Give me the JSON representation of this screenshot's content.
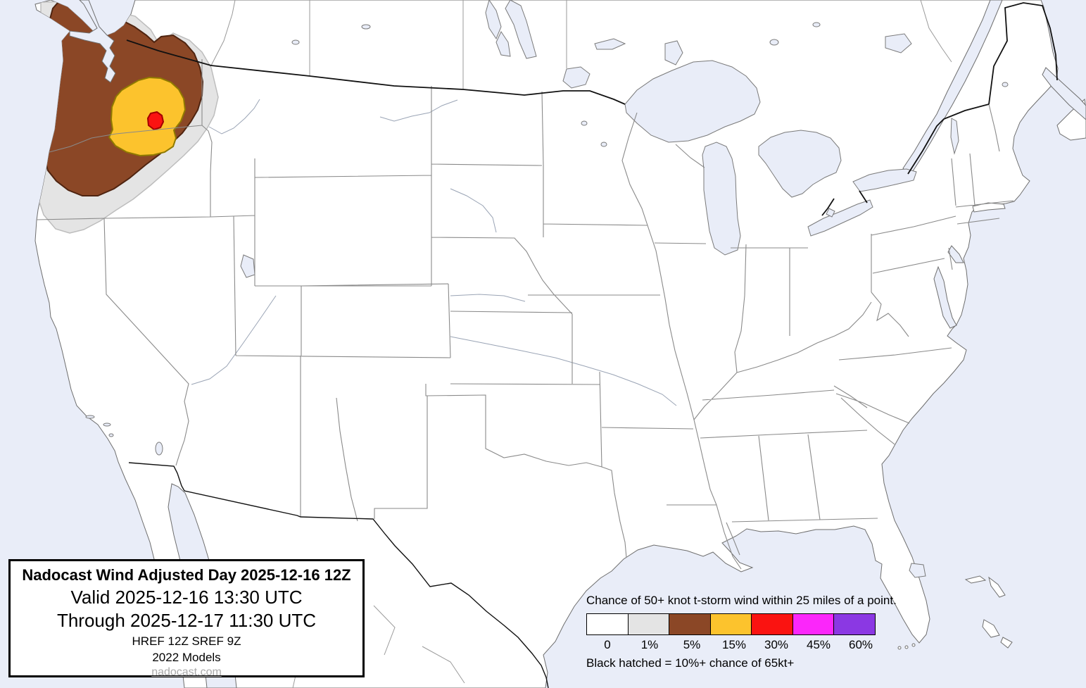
{
  "map": {
    "region": "Continental United States probability outlook map",
    "title_box": {
      "line1": "Nadocast Wind Adjusted Day 2025-12-16 12Z",
      "line2": "Valid 2025-12-16 13:30 UTC",
      "line3": "Through 2025-12-17 11:30 UTC",
      "line4": "HREF 12Z SREF 9Z",
      "line5": "2022 Models",
      "link": "nadocast.com"
    },
    "legend": {
      "title": "Chance of 50+ knot t-storm wind within 25 miles of a point.",
      "footnote": "Black hatched = 10%+ chance of 65kt+",
      "swatches": [
        {
          "label": "0",
          "color": "#ffffff"
        },
        {
          "label": "1%",
          "color": "#e4e4e4"
        },
        {
          "label": "5%",
          "color": "#8b4726"
        },
        {
          "label": "15%",
          "color": "#fcc32d"
        },
        {
          "label": "30%",
          "color": "#fa1311"
        },
        {
          "label": "45%",
          "color": "#fb26fa"
        },
        {
          "label": "60%",
          "color": "#8b38e3"
        }
      ]
    },
    "colors": {
      "ocean": "#e9edf8",
      "land": "#ffffff",
      "coast_stroke": "#6e6e6e",
      "state_border": "#8a8a8a",
      "country_border": "#111111",
      "river": "#9aa4b5",
      "contour_1": "#e4e4e4",
      "contour_1_stroke": "#bdbdbd",
      "contour_5": "#8b4726",
      "contour_5_stroke": "#4f2410",
      "contour_15": "#fcc32d",
      "contour_15_stroke": "#8f7a00",
      "contour_30": "#fa1311",
      "contour_30_stroke": "#a30000"
    }
  }
}
